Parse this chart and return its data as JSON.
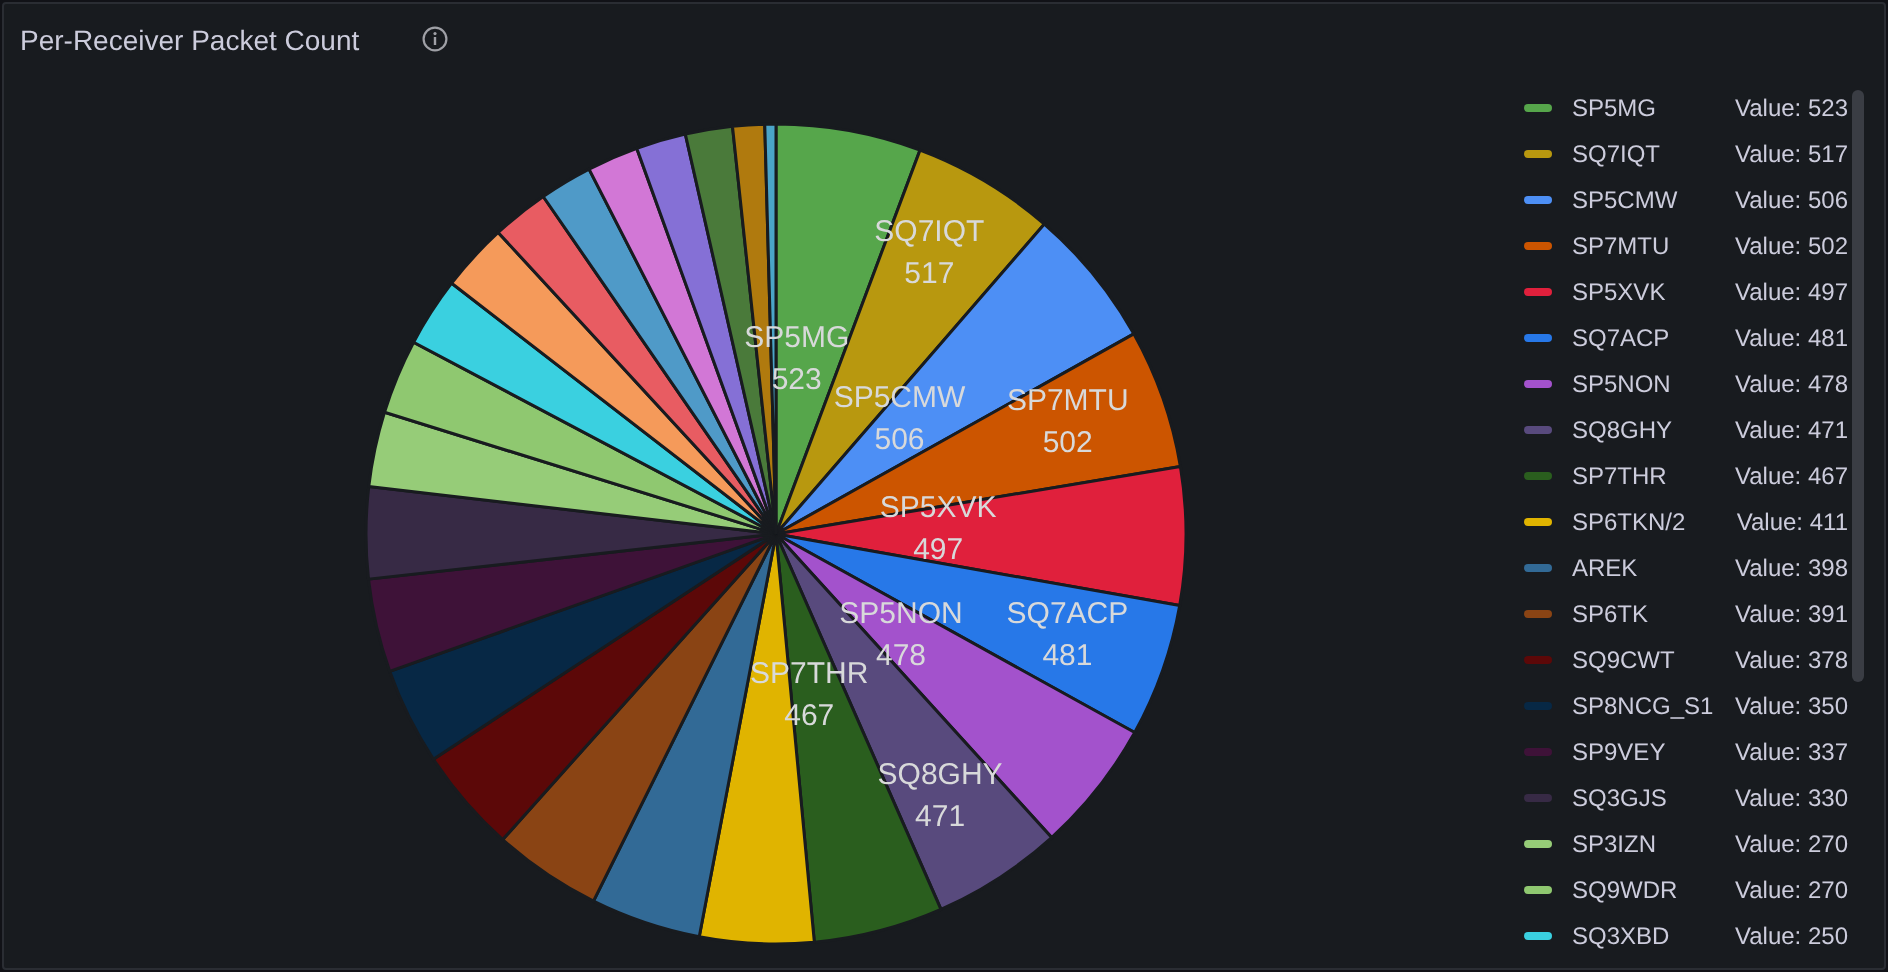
{
  "chart_data": {
    "type": "pie",
    "title": "Per-Receiver Packet Count",
    "categories": [
      "SP5MG",
      "SQ7IQT",
      "SP5CMW",
      "SP7MTU",
      "SP5XVK",
      "SQ7ACP",
      "SP5NON",
      "SQ8GHY",
      "SP7THR",
      "SP6TKN/2",
      "AREK",
      "SP6TK",
      "SQ9CWT",
      "SP8NCG_S1",
      "SP9VEY",
      "SQ3GJS",
      "SP3IZN",
      "SQ9WDR",
      "SQ3XBD",
      null,
      null,
      null,
      null,
      null,
      null,
      null,
      null
    ],
    "values": [
      523,
      517,
      506,
      502,
      497,
      481,
      478,
      471,
      467,
      411,
      398,
      391,
      378,
      350,
      337,
      330,
      270,
      270,
      250,
      245,
      205,
      190,
      185,
      180,
      170,
      115,
      40
    ],
    "colors": [
      "#56a64b",
      "#b8980f",
      "#4d8ff5",
      "#cc5500",
      "#e0203c",
      "#2778e8",
      "#a352cc",
      "#584a7d",
      "#2a5e1e",
      "#e0b400",
      "#326a96",
      "#8a4414",
      "#5c0808",
      "#072845",
      "#3e1238",
      "#372a45",
      "#96cc78",
      "#8fc870",
      "#3ad0e0",
      "#f59a5a",
      "#e85c62",
      "#4f9ac8",
      "#d277d6",
      "#8570d6",
      "#4a7a3a",
      "#b07a0e",
      "#4aa4c8"
    ],
    "value_labels": [
      "523",
      "517",
      "506",
      "502",
      "497",
      "481",
      "478",
      "471",
      "467",
      "411",
      "398",
      "391",
      "378",
      "350",
      "337",
      "330",
      "270",
      "270",
      "250",
      null,
      null,
      null,
      null,
      null,
      null,
      null,
      null
    ],
    "annotations": [
      "Value:"
    ],
    "legend": "right"
  }
}
